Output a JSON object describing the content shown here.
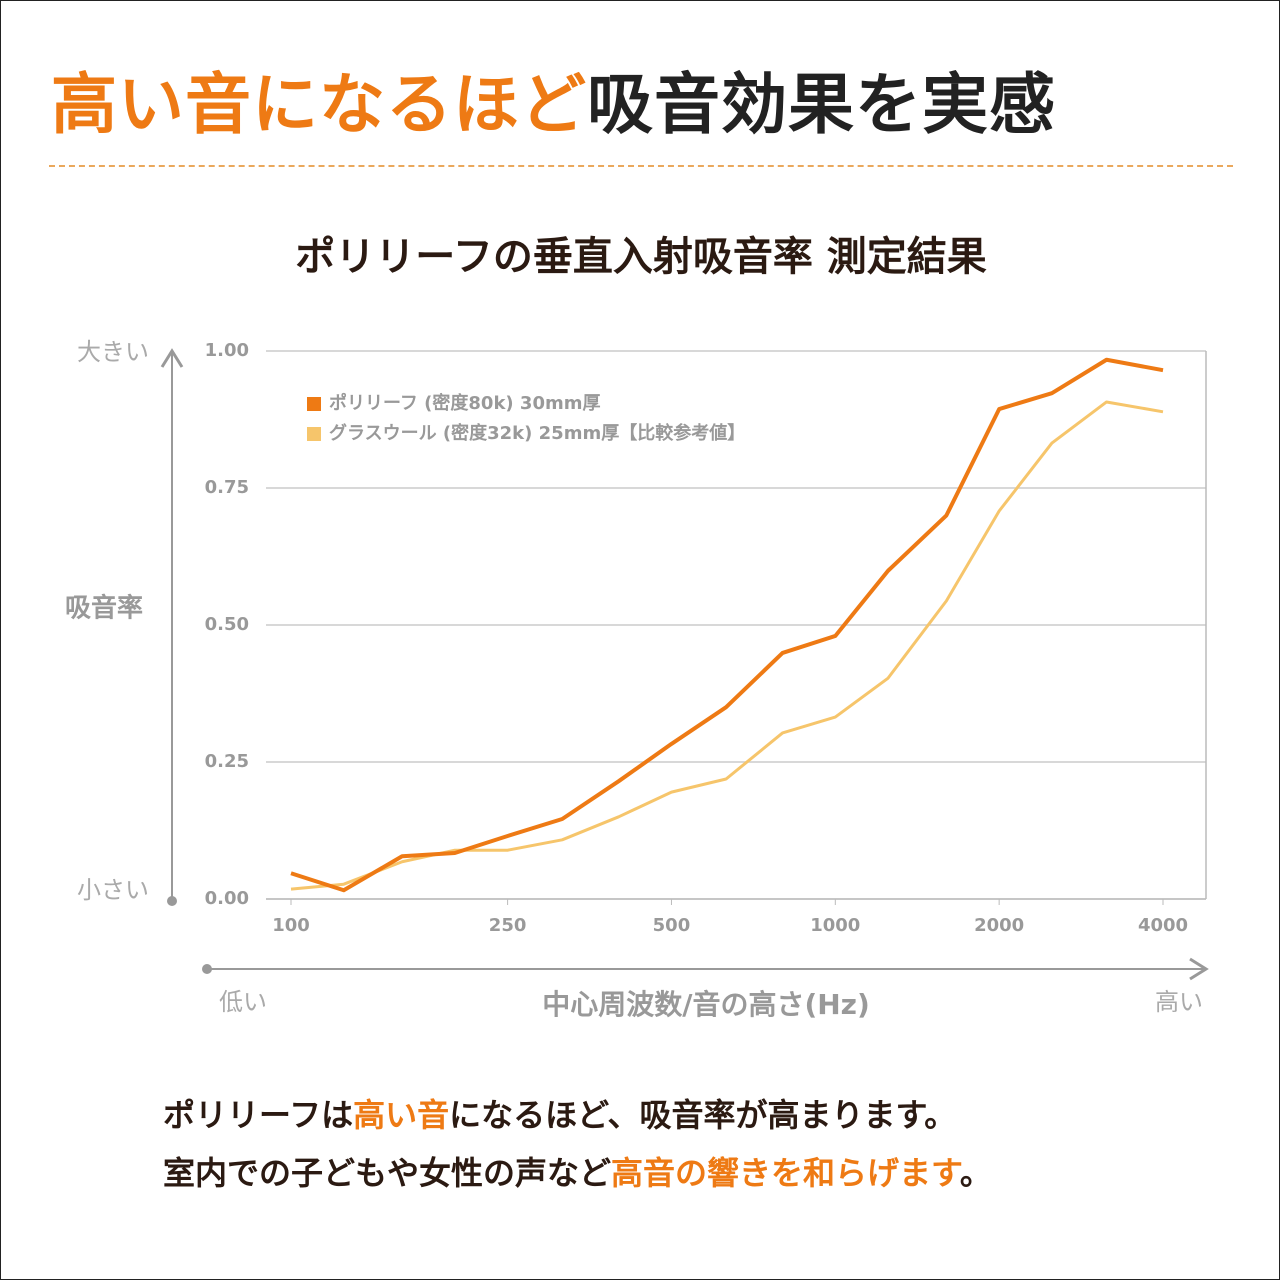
{
  "header": {
    "title_highlight": "高い音になるほど",
    "title_rest": "吸音効果を実感"
  },
  "chart_data": {
    "type": "line",
    "title": "ポリリーフの垂直入射吸音率 測定結果",
    "y_label": "吸音率",
    "y_high_label": "大きい",
    "y_low_label": "小さい",
    "x_label": "中心周波数/音の高さ(Hz)",
    "x_low_label": "低い",
    "x_high_label": "高い",
    "x": [
      100,
      125,
      160,
      200,
      250,
      315,
      400,
      500,
      630,
      800,
      1000,
      1250,
      1600,
      2000,
      2500,
      3150,
      4000
    ],
    "xscale": "log",
    "xlim": [
      100,
      4000
    ],
    "xticks": [
      100,
      250,
      500,
      1000,
      2000,
      4000
    ],
    "ylim": [
      0,
      1
    ],
    "yticks": [
      {
        "value": 0,
        "label": "0.00"
      },
      {
        "value": 0.25,
        "label": "0.25"
      },
      {
        "value": 0.5,
        "label": "0.50"
      },
      {
        "value": 0.75,
        "label": "0.75"
      },
      {
        "value": 1,
        "label": "1.00"
      }
    ],
    "grid": true,
    "legend": "top-left",
    "series": [
      {
        "name": "ポリリーフ (密度80k)  30mm厚",
        "color": "#ee7a14",
        "values": [
          0.047,
          0.016,
          0.078,
          0.084,
          0.115,
          0.146,
          0.215,
          0.283,
          0.35,
          0.449,
          0.48,
          0.599,
          0.7,
          0.894,
          0.923,
          0.984,
          0.965
        ]
      },
      {
        "name": "グラスウール (密度32k)  25mm厚【比較参考値】",
        "color": "#f6c56b",
        "values": [
          0.018,
          0.027,
          0.068,
          0.089,
          0.089,
          0.108,
          0.15,
          0.195,
          0.219,
          0.303,
          0.332,
          0.403,
          0.544,
          0.708,
          0.832,
          0.907,
          0.889
        ]
      }
    ]
  },
  "footer": {
    "lines": [
      [
        {
          "text": "ポリリーフは",
          "highlight": false
        },
        {
          "text": "高い音",
          "highlight": true
        },
        {
          "text": "になるほど、吸音率が高まります。",
          "highlight": false
        }
      ],
      [
        {
          "text": "室内での子どもや女性の声など",
          "highlight": false
        },
        {
          "text": "高音の響きを和らげます",
          "highlight": true
        },
        {
          "text": "。",
          "highlight": false
        }
      ]
    ]
  }
}
